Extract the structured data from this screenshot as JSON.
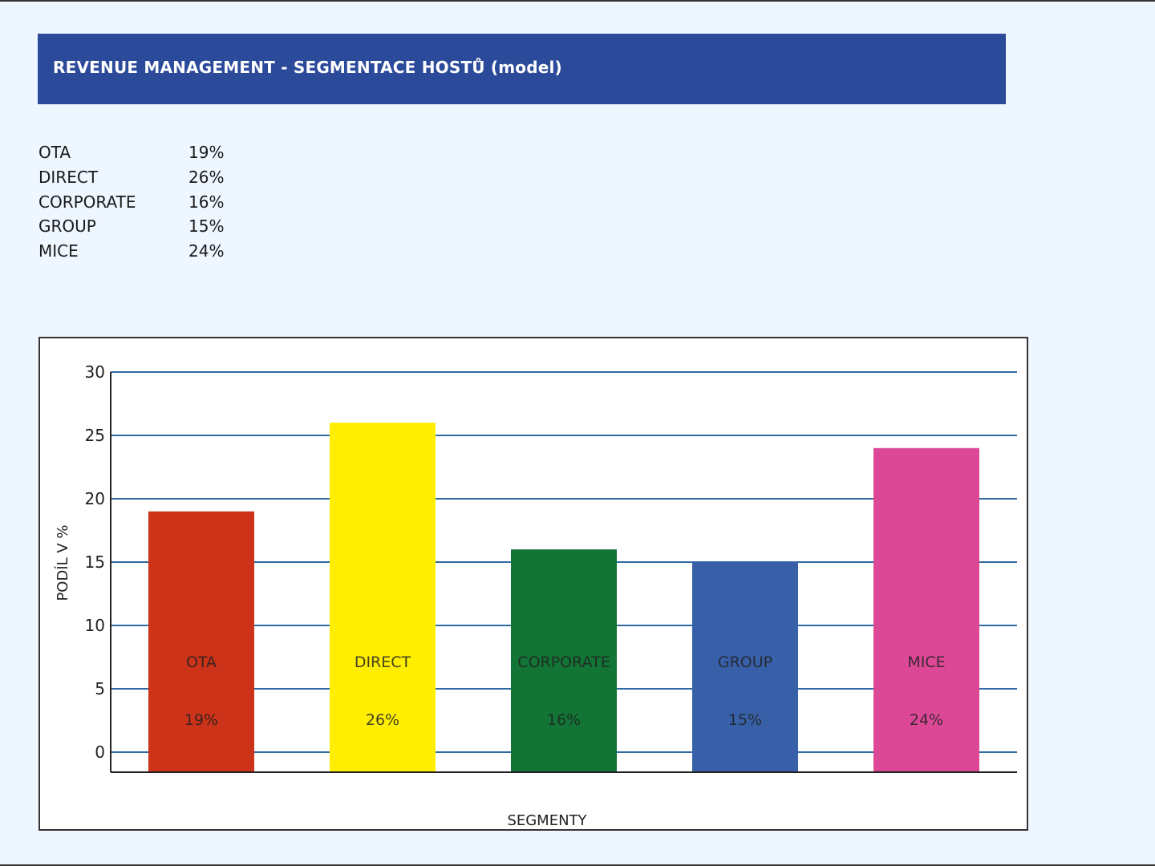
{
  "header": {
    "title": "REVENUE MANAGEMENT - SEGMENTACE HOSTŮ (model)"
  },
  "summary": [
    {
      "label": "OTA",
      "value": "19%"
    },
    {
      "label": "DIRECT",
      "value": "26%"
    },
    {
      "label": "CORPORATE",
      "value": "16%"
    },
    {
      "label": "GROUP",
      "value": "15%"
    },
    {
      "label": "MICE",
      "value": "24%"
    }
  ],
  "chart_data": {
    "type": "bar",
    "title": "",
    "xlabel": "SEGMENTY",
    "ylabel": "PODÍL V %",
    "categories": [
      "OTA",
      "DIRECT",
      "CORPORATE",
      "GROUP",
      "MICE"
    ],
    "values": [
      19,
      26,
      16,
      15,
      24
    ],
    "value_labels": [
      "19%",
      "26%",
      "16%",
      "15%",
      "24%"
    ],
    "colors": [
      "#cc3318",
      "#ffee00",
      "#127535",
      "#3860a8",
      "#dc4896"
    ],
    "ylim": [
      0,
      30
    ],
    "yticks": [
      0,
      5,
      10,
      15,
      20,
      25,
      30
    ],
    "grid": true,
    "grid_color": "#2f6aa3"
  }
}
